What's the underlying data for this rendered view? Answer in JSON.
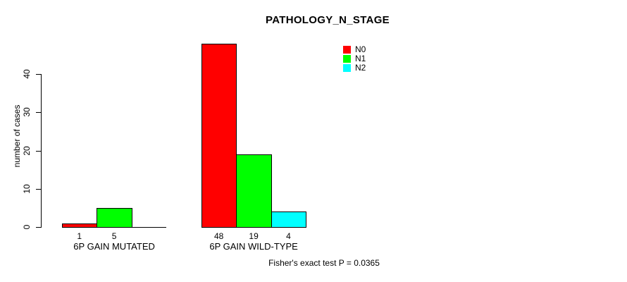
{
  "title": "PATHOLOGY_N_STAGE",
  "y_axis": {
    "label": "number of cases",
    "ticks": [
      0,
      10,
      20,
      30,
      40
    ]
  },
  "legend": {
    "items": [
      {
        "label": "N0",
        "color": "#FF0000"
      },
      {
        "label": "N1",
        "color": "#00FF00"
      },
      {
        "label": "N2",
        "color": "#00FFFF"
      }
    ]
  },
  "footnote": "Fisher's exact test P = 0.0365",
  "chart_data": {
    "type": "bar",
    "title": "PATHOLOGY_N_STAGE",
    "xlabel": "",
    "ylabel": "number of cases",
    "ylim": [
      0,
      48
    ],
    "yticks": [
      0,
      10,
      20,
      30,
      40
    ],
    "grid": false,
    "legend_position": "top-right",
    "categories": [
      "6P GAIN MUTATED",
      "6P GAIN WILD-TYPE"
    ],
    "series": [
      {
        "name": "N0",
        "color": "#FF0000",
        "values": [
          1,
          48
        ]
      },
      {
        "name": "N1",
        "color": "#00FF00",
        "values": [
          5,
          19
        ]
      },
      {
        "name": "N2",
        "color": "#00FFFF",
        "values": [
          0,
          4
        ]
      }
    ],
    "bar_value_labels": [
      [
        "1",
        "5",
        null
      ],
      [
        "48",
        "19",
        "4"
      ]
    ],
    "annotation": "Fisher's exact test P = 0.0365"
  }
}
